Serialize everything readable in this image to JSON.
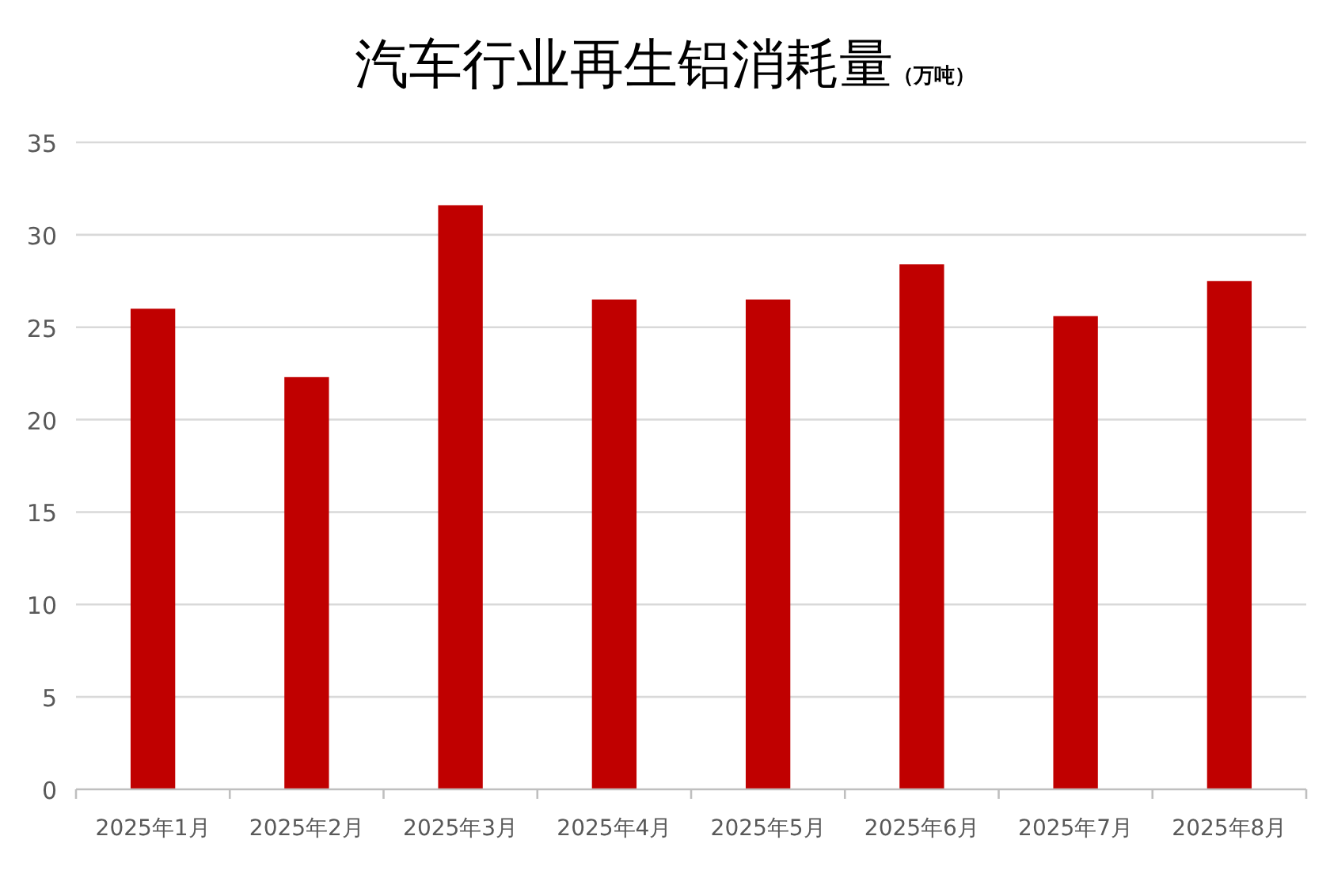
{
  "chart_data": {
    "type": "bar",
    "title": "汽车行业再生铝消耗量",
    "subtitle": "（万吨）",
    "categories": [
      "2025年1月",
      "2025年2月",
      "2025年3月",
      "2025年4月",
      "2025年5月",
      "2025年6月",
      "2025年7月",
      "2025年8月"
    ],
    "values": [
      26.0,
      22.3,
      31.6,
      26.5,
      26.5,
      28.4,
      25.6,
      27.5
    ],
    "color": "#c00000",
    "ylim": [
      0,
      35
    ],
    "yticks": [
      0,
      5,
      10,
      15,
      20,
      25,
      30,
      35
    ],
    "grid": "y",
    "legend": false
  }
}
